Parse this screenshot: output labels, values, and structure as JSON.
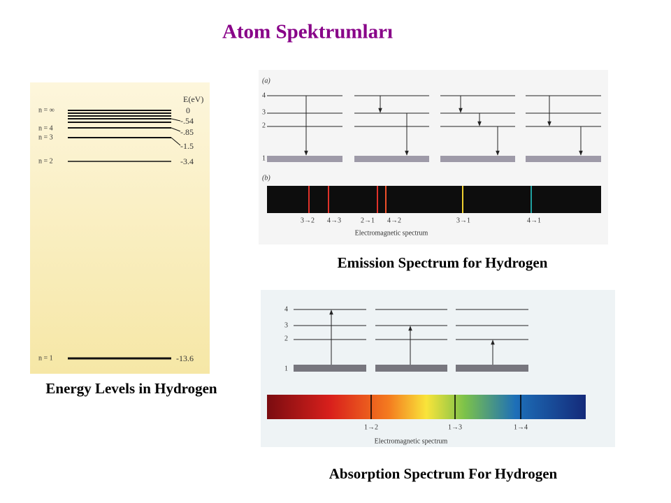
{
  "title": "Atom Spektrumları",
  "energy_levels": {
    "caption": "Energy Levels in Hydrogen",
    "unit_label": "E(eV)",
    "levels": [
      {
        "label": "n = ∞",
        "energy": "0"
      },
      {
        "energy": "-.54"
      },
      {
        "label": "n = 4",
        "energy": "-.85"
      },
      {
        "label": "n = 3",
        "energy": "-1.5"
      },
      {
        "label": "n = 2",
        "energy": "-3.4"
      },
      {
        "label": "n = 1",
        "energy": "-13.6"
      }
    ]
  },
  "emission": {
    "panel_a": "(a)",
    "panel_b": "(b)",
    "level_labels": [
      "4",
      "3",
      "2",
      "1"
    ],
    "transitions": [
      "3→2",
      "4→3",
      "2→1",
      "4→2",
      "3→1",
      "4→1"
    ],
    "axis_label": "Electromagnetic spectrum",
    "caption": "Emission Spectrum for Hydrogen"
  },
  "absorption": {
    "level_labels": [
      "4",
      "3",
      "2",
      "1"
    ],
    "transitions": [
      "1→2",
      "1→3",
      "1→4"
    ],
    "axis_label": "Electromagnetic spectrum",
    "caption": "Absorption Spectrum For Hydrogen"
  }
}
